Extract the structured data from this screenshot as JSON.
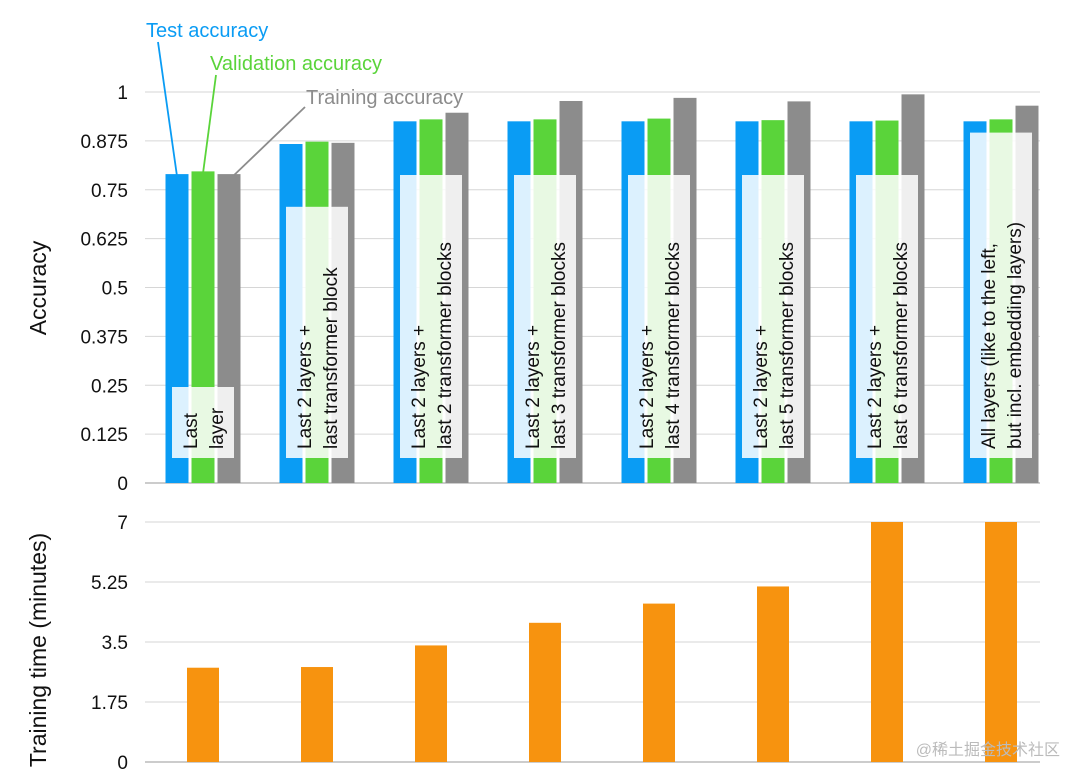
{
  "chart_data": [
    {
      "type": "bar",
      "ylabel": "Accuracy",
      "ylim": [
        0,
        1
      ],
      "yticks": [
        "0",
        "0.125",
        "0.25",
        "0.375",
        "0.5",
        "0.625",
        "0.75",
        "0.875",
        "1"
      ],
      "grid": true,
      "legend": "top-left (callout labels)",
      "categories": [
        [
          "Last",
          "layer"
        ],
        [
          "Last 2 layers +",
          "last transformer block"
        ],
        [
          "Last 2 layers +",
          "last 2 transformer blocks"
        ],
        [
          "Last 2 layers +",
          "last 3 transformer blocks"
        ],
        [
          "Last 2 layers +",
          "last 4 transformer blocks"
        ],
        [
          "Last 2 layers +",
          "last 5 transformer blocks"
        ],
        [
          "Last 2 layers +",
          "last 6 transformer blocks"
        ],
        [
          "All layers (like to the left,",
          "but incl. embedding layers)"
        ]
      ],
      "series": [
        {
          "name": "Test accuracy",
          "color": "#0a9cf4",
          "values": [
            0.79,
            0.867,
            0.925,
            0.925,
            0.925,
            0.925,
            0.925,
            0.925
          ]
        },
        {
          "name": "Validation accuracy",
          "color": "#5ad43a",
          "values": [
            0.797,
            0.873,
            0.93,
            0.93,
            0.932,
            0.928,
            0.927,
            0.93
          ]
        },
        {
          "name": "Training accuracy",
          "color": "#8c8c8c",
          "values": [
            0.79,
            0.87,
            0.947,
            0.977,
            0.985,
            0.976,
            0.994,
            0.965
          ]
        }
      ]
    },
    {
      "type": "bar",
      "ylabel": "Training time (minutes)",
      "ylim": [
        0,
        7
      ],
      "yticks": [
        "0",
        "1.75",
        "3.5",
        "5.25",
        "7"
      ],
      "grid": true,
      "series": [
        {
          "color": "#f7930f",
          "values": [
            2.75,
            2.77,
            3.4,
            4.06,
            4.62,
            5.12,
            7.0,
            7.0
          ]
        }
      ]
    }
  ],
  "watermark": "@稀土掘金技术社区"
}
